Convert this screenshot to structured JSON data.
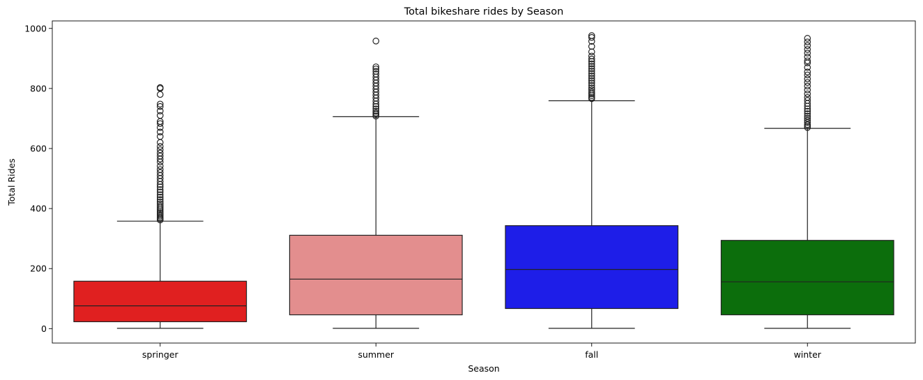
{
  "chart_data": {
    "type": "box",
    "title": "Total bikeshare rides by Season",
    "xlabel": "Season",
    "ylabel": "Total Rides",
    "ylim": [
      -48,
      1025
    ],
    "yticks": [
      0,
      200,
      400,
      600,
      800,
      1000
    ],
    "grid": false,
    "categories": [
      "springer",
      "summer",
      "fall",
      "winter"
    ],
    "colors": [
      "#e02020",
      "#e38e8e",
      "#1e1ee8",
      "#0c6e0c"
    ],
    "boxes": [
      {
        "name": "springer",
        "whisker_low": 1,
        "q1": 23,
        "median": 76,
        "q3": 158,
        "whisker_high": 358,
        "outliers": [
          362,
          366,
          370,
          375,
          380,
          385,
          390,
          396,
          402,
          408,
          415,
          422,
          430,
          438,
          446,
          455,
          463,
          472,
          480,
          490,
          500,
          510,
          520,
          530,
          542,
          555,
          565,
          575,
          585,
          596,
          607,
          620,
          640,
          655,
          670,
          683,
          690,
          710,
          725,
          740,
          748,
          780,
          800,
          803
        ]
      },
      {
        "name": "summer",
        "whisker_low": 1,
        "q1": 46,
        "median": 165,
        "q3": 311,
        "whisker_high": 706,
        "outliers": [
          708,
          713,
          718,
          724,
          732,
          740,
          748,
          758,
          768,
          778,
          788,
          798,
          808,
          818,
          828,
          838,
          848,
          857,
          865,
          872,
          958
        ]
      },
      {
        "name": "fall",
        "whisker_low": 1,
        "q1": 67,
        "median": 197,
        "q3": 343,
        "whisker_high": 759,
        "outliers": [
          766,
          770,
          776,
          782,
          788,
          795,
          802,
          810,
          818,
          826,
          834,
          842,
          850,
          858,
          866,
          874,
          882,
          890,
          898,
          908,
          922,
          940,
          957,
          970,
          976
        ]
      },
      {
        "name": "winter",
        "whisker_low": 1,
        "q1": 46,
        "median": 156,
        "q3": 294,
        "whisker_high": 667,
        "outliers": [
          670,
          675,
          680,
          687,
          694,
          701,
          708,
          716,
          724,
          732,
          741,
          750,
          760,
          770,
          782,
          795,
          808,
          820,
          832,
          845,
          855,
          870,
          885,
          892,
          905,
          918,
          930,
          943,
          955,
          967
        ]
      }
    ]
  }
}
